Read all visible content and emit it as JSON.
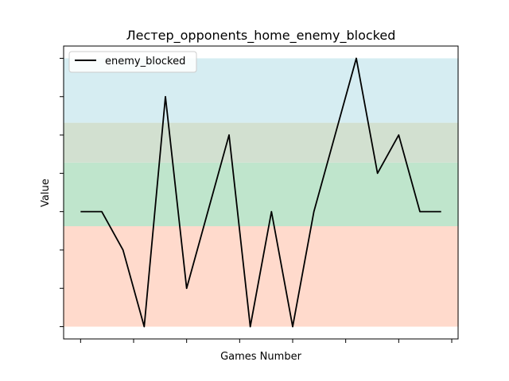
{
  "chart_data": {
    "type": "line",
    "title": "Лестер_opponents_home_enemy_blocked",
    "xlabel": "Games Number",
    "ylabel": "Value",
    "x": [
      0,
      1,
      2,
      3,
      4,
      5,
      6,
      7,
      8,
      9,
      10,
      11,
      12,
      13,
      14,
      15,
      16,
      17
    ],
    "series": [
      {
        "name": "enemy_blocked",
        "color": "#000000",
        "values": [
          4,
          4,
          3,
          1,
          7,
          2,
          4,
          6,
          1,
          4,
          1,
          4,
          6,
          8,
          5,
          6,
          4,
          4
        ]
      }
    ],
    "ylim": [
      0.68,
      8.32
    ],
    "xlim": [
      -0.8,
      17.8
    ],
    "bands": [
      {
        "from": 1.0,
        "to": 3.62,
        "color": "#ffdacc"
      },
      {
        "from": 3.62,
        "to": 5.28,
        "color": "#bfe5cc"
      },
      {
        "from": 5.28,
        "to": 6.32,
        "color": "#d2e0d0"
      },
      {
        "from": 6.32,
        "to": 8.0,
        "color": "#d6edf2"
      }
    ],
    "y_ticks": [
      1,
      2,
      3,
      4,
      5,
      6,
      7,
      8
    ],
    "x_ticks": [
      0,
      2.5,
      5,
      7.5,
      10,
      12.5,
      15,
      17.5
    ],
    "legend_position": "top-left",
    "grid": false
  }
}
